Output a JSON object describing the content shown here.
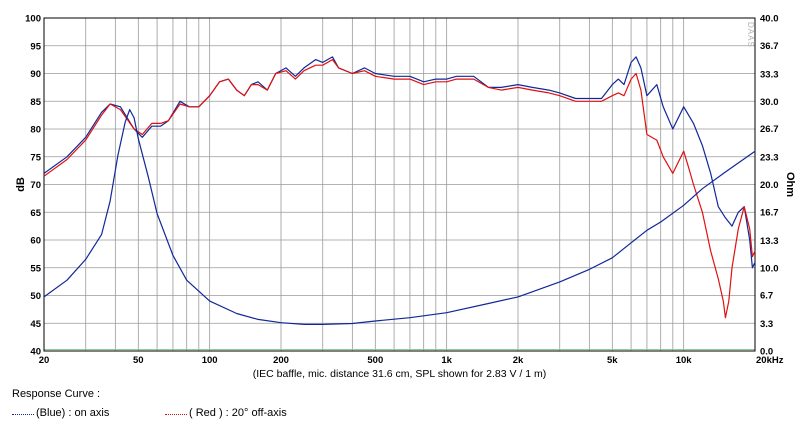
{
  "chart_data": {
    "type": "line",
    "x_axis": {
      "scale": "log",
      "range": [
        20,
        20000
      ],
      "tick_values": [
        20,
        50,
        100,
        200,
        500,
        1000,
        2000,
        5000,
        10000,
        20000
      ],
      "tick_labels": [
        "20",
        "50",
        "100",
        "200",
        "500",
        "1k",
        "2k",
        "5k",
        "10k",
        "20kHz"
      ],
      "label": "(IEC baffle, mic. distance 31.6 cm, SPL shown for 2.83 V / 1 m)"
    },
    "y_axis_left": {
      "label": "dB",
      "range": [
        40,
        100
      ],
      "tick_values": [
        40,
        45,
        50,
        55,
        60,
        65,
        70,
        75,
        80,
        85,
        90,
        95,
        100
      ],
      "tick_labels": [
        "40",
        "45",
        "50",
        "55",
        "60",
        "65",
        "70",
        "75",
        "80",
        "85",
        "90",
        "95",
        "100"
      ]
    },
    "y_axis_right": {
      "label": "Ohm",
      "range": [
        0,
        40
      ],
      "tick_values": [
        0,
        3.3,
        6.7,
        10,
        13.3,
        16.7,
        20,
        23.3,
        26.7,
        30,
        33.3,
        36.7,
        40
      ],
      "tick_labels": [
        "0.0",
        "3.3",
        "6.7",
        "10.0",
        "13.3",
        "16.7",
        "20.0",
        "23.3",
        "26.7",
        "30.0",
        "33.3",
        "36.7",
        "40.0"
      ]
    },
    "watermark": "DAAS",
    "grid": true,
    "series": [
      {
        "name": "(Blue) : on axis",
        "color": "#10289a",
        "axis": "left",
        "points": [
          [
            20,
            72
          ],
          [
            25,
            75
          ],
          [
            30,
            78.5
          ],
          [
            35,
            83
          ],
          [
            38,
            84.5
          ],
          [
            42,
            84
          ],
          [
            48,
            80
          ],
          [
            52,
            78.5
          ],
          [
            57,
            80.5
          ],
          [
            62,
            80.5
          ],
          [
            67,
            81.5
          ],
          [
            75,
            85
          ],
          [
            82,
            84
          ],
          [
            90,
            84
          ],
          [
            100,
            86
          ],
          [
            110,
            88.5
          ],
          [
            120,
            89
          ],
          [
            130,
            87
          ],
          [
            140,
            86
          ],
          [
            150,
            88
          ],
          [
            160,
            88.5
          ],
          [
            175,
            87
          ],
          [
            190,
            90
          ],
          [
            210,
            91
          ],
          [
            230,
            89.5
          ],
          [
            250,
            91
          ],
          [
            280,
            92.5
          ],
          [
            300,
            92
          ],
          [
            330,
            93
          ],
          [
            350,
            91
          ],
          [
            400,
            90
          ],
          [
            450,
            91
          ],
          [
            500,
            90
          ],
          [
            600,
            89.5
          ],
          [
            700,
            89.5
          ],
          [
            800,
            88.5
          ],
          [
            900,
            89
          ],
          [
            1000,
            89
          ],
          [
            1100,
            89.5
          ],
          [
            1300,
            89.5
          ],
          [
            1500,
            87.5
          ],
          [
            1700,
            87.5
          ],
          [
            2000,
            88
          ],
          [
            2300,
            87.5
          ],
          [
            2700,
            87
          ],
          [
            3000,
            86.5
          ],
          [
            3500,
            85.5
          ],
          [
            4000,
            85.5
          ],
          [
            4500,
            85.5
          ],
          [
            5000,
            88
          ],
          [
            5300,
            89
          ],
          [
            5600,
            88
          ],
          [
            6000,
            92
          ],
          [
            6300,
            93
          ],
          [
            6600,
            91
          ],
          [
            7000,
            86
          ],
          [
            7700,
            88
          ],
          [
            8200,
            84
          ],
          [
            9000,
            80
          ],
          [
            10000,
            84
          ],
          [
            11000,
            81
          ],
          [
            12000,
            77
          ],
          [
            13000,
            72
          ],
          [
            14000,
            66
          ],
          [
            15000,
            64
          ],
          [
            16000,
            62.5
          ],
          [
            17000,
            65
          ],
          [
            18000,
            66
          ],
          [
            19000,
            60
          ],
          [
            19500,
            55
          ],
          [
            20000,
            56
          ]
        ]
      },
      {
        "name": "( Red ) : 20° off-axis",
        "color": "#e01010",
        "axis": "left",
        "points": [
          [
            20,
            71.5
          ],
          [
            25,
            74.5
          ],
          [
            30,
            78
          ],
          [
            35,
            82.5
          ],
          [
            38,
            84.5
          ],
          [
            42,
            83.5
          ],
          [
            48,
            80
          ],
          [
            52,
            79
          ],
          [
            57,
            81
          ],
          [
            62,
            81
          ],
          [
            67,
            81.5
          ],
          [
            75,
            84.5
          ],
          [
            82,
            84
          ],
          [
            90,
            84
          ],
          [
            100,
            86
          ],
          [
            110,
            88.5
          ],
          [
            120,
            89
          ],
          [
            130,
            87
          ],
          [
            140,
            86
          ],
          [
            150,
            88
          ],
          [
            160,
            88
          ],
          [
            175,
            87
          ],
          [
            190,
            90
          ],
          [
            210,
            90.5
          ],
          [
            230,
            89
          ],
          [
            250,
            90.5
          ],
          [
            280,
            91.5
          ],
          [
            300,
            91.5
          ],
          [
            330,
            92.5
          ],
          [
            350,
            91
          ],
          [
            400,
            90
          ],
          [
            450,
            90.5
          ],
          [
            500,
            89.5
          ],
          [
            600,
            89
          ],
          [
            700,
            89
          ],
          [
            800,
            88
          ],
          [
            900,
            88.5
          ],
          [
            1000,
            88.5
          ],
          [
            1100,
            89
          ],
          [
            1300,
            89
          ],
          [
            1500,
            87.5
          ],
          [
            1700,
            87
          ],
          [
            2000,
            87.5
          ],
          [
            2300,
            87
          ],
          [
            2700,
            86.5
          ],
          [
            3000,
            86
          ],
          [
            3500,
            85
          ],
          [
            4000,
            85
          ],
          [
            4500,
            85
          ],
          [
            5000,
            86
          ],
          [
            5300,
            86.5
          ],
          [
            5600,
            86
          ],
          [
            6000,
            89
          ],
          [
            6300,
            90
          ],
          [
            6600,
            87
          ],
          [
            7000,
            79
          ],
          [
            7700,
            78
          ],
          [
            8200,
            75
          ],
          [
            9000,
            72
          ],
          [
            10000,
            76
          ],
          [
            10500,
            73
          ],
          [
            11000,
            70
          ],
          [
            12000,
            65
          ],
          [
            13000,
            58
          ],
          [
            14000,
            53
          ],
          [
            14700,
            49
          ],
          [
            15000,
            46
          ],
          [
            15500,
            49
          ],
          [
            16000,
            55
          ],
          [
            17000,
            62
          ],
          [
            18000,
            66
          ],
          [
            19000,
            62
          ],
          [
            19500,
            57
          ],
          [
            20000,
            58
          ]
        ]
      },
      {
        "name": "Impedance",
        "color": "#10289a",
        "axis": "right",
        "points": [
          [
            20,
            6.5
          ],
          [
            25,
            8.5
          ],
          [
            30,
            11
          ],
          [
            35,
            14
          ],
          [
            38,
            18
          ],
          [
            41,
            23.5
          ],
          [
            44,
            27.5
          ],
          [
            46,
            29
          ],
          [
            48,
            28
          ],
          [
            50,
            25.5
          ],
          [
            55,
            21
          ],
          [
            60,
            16.5
          ],
          [
            70,
            11.5
          ],
          [
            80,
            8.5
          ],
          [
            100,
            6
          ],
          [
            130,
            4.5
          ],
          [
            160,
            3.8
          ],
          [
            200,
            3.4
          ],
          [
            250,
            3.2
          ],
          [
            300,
            3.2
          ],
          [
            400,
            3.3
          ],
          [
            500,
            3.6
          ],
          [
            700,
            4
          ],
          [
            1000,
            4.6
          ],
          [
            1500,
            5.7
          ],
          [
            2000,
            6.5
          ],
          [
            3000,
            8.3
          ],
          [
            4000,
            9.8
          ],
          [
            5000,
            11.2
          ],
          [
            6000,
            13
          ],
          [
            7000,
            14.5
          ],
          [
            8000,
            15.5
          ],
          [
            10000,
            17.5
          ],
          [
            12000,
            19.5
          ],
          [
            15000,
            21.5
          ],
          [
            20000,
            24
          ]
        ]
      }
    ],
    "legend": {
      "title": "Response Curve :",
      "items": [
        "(Blue) : on axis",
        "( Red ) : 20° off-axis"
      ]
    }
  }
}
